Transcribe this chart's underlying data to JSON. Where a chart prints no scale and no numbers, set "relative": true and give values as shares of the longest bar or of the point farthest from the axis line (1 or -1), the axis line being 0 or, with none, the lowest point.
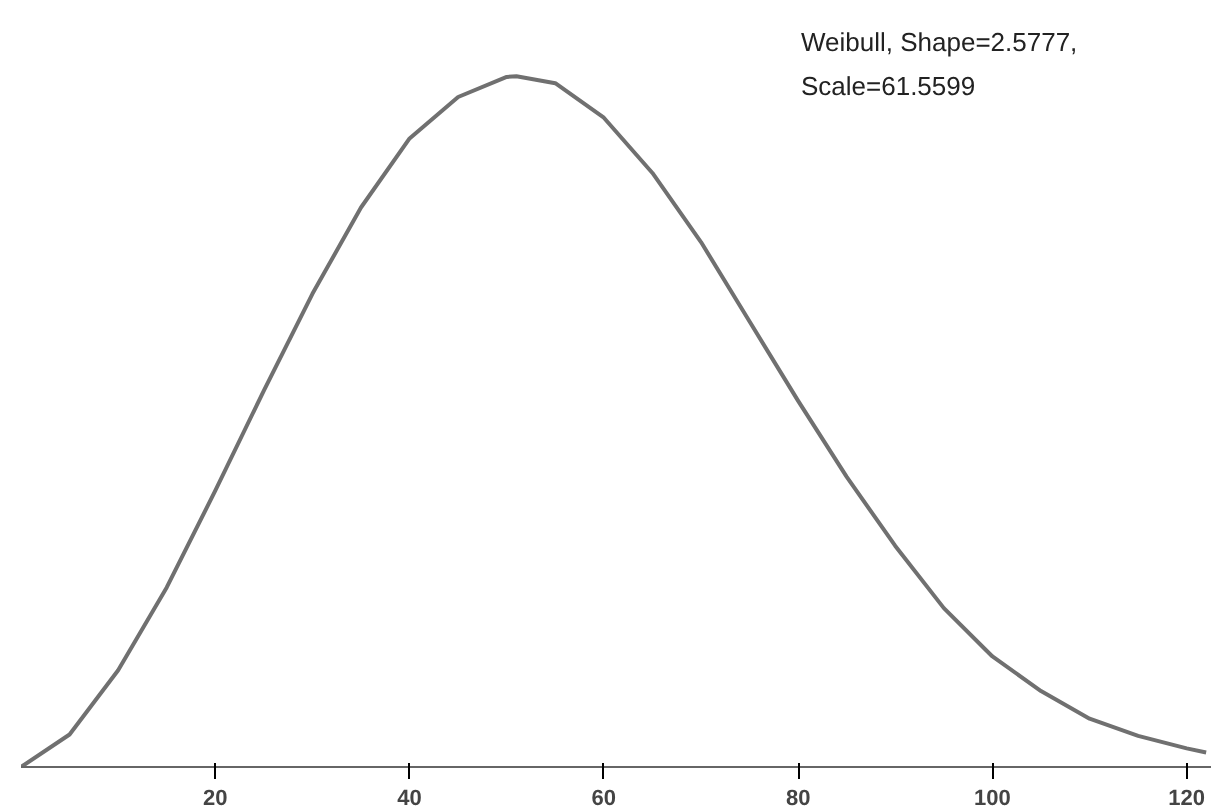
{
  "chart_data": {
    "type": "line",
    "relative": true,
    "annotations": [
      "Weibull, Shape=2.5777,",
      "Scale=61.5599"
    ],
    "xlim": [
      0,
      122.5
    ],
    "xticks": [
      20,
      40,
      60,
      80,
      100,
      120
    ],
    "grid": false,
    "marker": "none",
    "line_style": "solid",
    "series": [
      {
        "color": "#707070",
        "x": [
          0,
          5,
          10,
          15,
          20,
          25,
          30,
          35,
          40,
          45,
          50,
          51,
          55,
          60,
          65,
          70,
          75,
          80,
          85,
          90,
          95,
          100,
          105,
          110,
          115,
          120,
          122
        ],
        "values": [
          0,
          0.047,
          0.14,
          0.26,
          0.4,
          0.545,
          0.685,
          0.81,
          0.91,
          0.97,
          0.999,
          1,
          0.99,
          0.94,
          0.86,
          0.76,
          0.645,
          0.53,
          0.42,
          0.32,
          0.23,
          0.16,
          0.11,
          0.07,
          0.045,
          0.027,
          0.021
        ]
      }
    ]
  }
}
